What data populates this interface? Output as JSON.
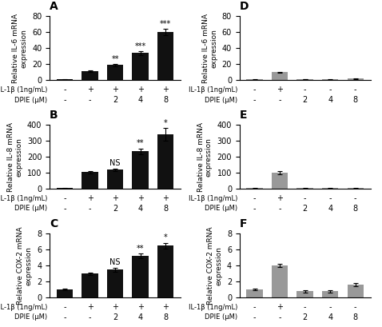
{
  "chart_data": [
    {
      "type": "bar",
      "title": "A",
      "ylabel": "Relative IL-6 mRNA\nexpression",
      "xlabel": [
        "IL-1β (1ng/mL)",
        "DPIE (μM)"
      ],
      "categories": [
        [
          "-",
          "-"
        ],
        [
          "+",
          "-"
        ],
        [
          "+",
          "2"
        ],
        [
          "+",
          "4"
        ],
        [
          "+",
          "8"
        ]
      ],
      "values": [
        1.0,
        11.0,
        19.0,
        34.0,
        60.0
      ],
      "errors": [
        0.3,
        1.0,
        1.5,
        2.5,
        4.0
      ],
      "annotations": [
        null,
        null,
        "**",
        "***",
        "***"
      ],
      "color": "#111111",
      "ylim": [
        0,
        80
      ],
      "yticks": [
        0,
        20,
        40,
        60,
        80
      ]
    },
    {
      "type": "bar",
      "title": "B",
      "ylabel": "Relative IL-8 mRNA\nexpression",
      "xlabel": [
        "IL-1β (1ng/mL)",
        "DPIE (μM)"
      ],
      "categories": [
        [
          "-",
          "-"
        ],
        [
          "+",
          "-"
        ],
        [
          "+",
          "2"
        ],
        [
          "+",
          "4"
        ],
        [
          "+",
          "8"
        ]
      ],
      "values": [
        5.0,
        105.0,
        120.0,
        235.0,
        340.0
      ],
      "errors": [
        2.0,
        6.0,
        9.0,
        18.0,
        40.0
      ],
      "annotations": [
        null,
        null,
        "NS",
        "**",
        "*"
      ],
      "color": "#111111",
      "ylim": [
        0,
        400
      ],
      "yticks": [
        0,
        100,
        200,
        300,
        400
      ]
    },
    {
      "type": "bar",
      "title": "C",
      "ylabel": "Relative COX-2 mRNA\nexpression",
      "xlabel": [
        "IL-1β (1ng/mL)",
        "DPIE (μM)"
      ],
      "categories": [
        [
          "-",
          "-"
        ],
        [
          "+",
          "-"
        ],
        [
          "+",
          "2"
        ],
        [
          "+",
          "4"
        ],
        [
          "+",
          "8"
        ]
      ],
      "values": [
        1.0,
        3.0,
        3.5,
        5.2,
        6.5
      ],
      "errors": [
        0.1,
        0.15,
        0.25,
        0.3,
        0.35
      ],
      "annotations": [
        null,
        null,
        "NS",
        "**",
        "*"
      ],
      "color": "#111111",
      "ylim": [
        0,
        8
      ],
      "yticks": [
        0,
        2,
        4,
        6,
        8
      ]
    },
    {
      "type": "bar",
      "title": "D",
      "ylabel": "Relative IL-6 mRNA\nexpression",
      "xlabel": [
        "IL-1β (1ng/mL)",
        "DPIE (μM)"
      ],
      "categories": [
        [
          "-",
          "-"
        ],
        [
          "+",
          "-"
        ],
        [
          "-",
          "2"
        ],
        [
          "-",
          "4"
        ],
        [
          "-",
          "8"
        ]
      ],
      "values": [
        1.0,
        10.0,
        1.5,
        1.0,
        2.0
      ],
      "errors": [
        0.2,
        0.8,
        0.3,
        0.2,
        0.3
      ],
      "annotations": [
        null,
        null,
        null,
        null,
        null
      ],
      "color": "#999999",
      "ylim": [
        0,
        80
      ],
      "yticks": [
        0,
        20,
        40,
        60,
        80
      ]
    },
    {
      "type": "bar",
      "title": "E",
      "ylabel": "Relative IL-8 mRNA\nexpression",
      "xlabel": [
        "IL-1β (1ng/mL)",
        "DPIE (μM)"
      ],
      "categories": [
        [
          "-",
          "-"
        ],
        [
          "+",
          "-"
        ],
        [
          "-",
          "2"
        ],
        [
          "-",
          "4"
        ],
        [
          "-",
          "8"
        ]
      ],
      "values": [
        5.0,
        100.0,
        5.0,
        5.0,
        5.0
      ],
      "errors": [
        1.5,
        10.0,
        1.5,
        1.5,
        1.5
      ],
      "annotations": [
        null,
        null,
        null,
        null,
        null
      ],
      "color": "#999999",
      "ylim": [
        0,
        400
      ],
      "yticks": [
        0,
        100,
        200,
        300,
        400
      ]
    },
    {
      "type": "bar",
      "title": "F",
      "ylabel": "Relative COX-2 mRNA\nexpression",
      "xlabel": [
        "IL-1β (1ng/mL)",
        "DPIE (μM)"
      ],
      "categories": [
        [
          "-",
          "-"
        ],
        [
          "+",
          "-"
        ],
        [
          "-",
          "2"
        ],
        [
          "-",
          "4"
        ],
        [
          "-",
          "8"
        ]
      ],
      "values": [
        1.0,
        4.0,
        0.8,
        0.8,
        1.6
      ],
      "errors": [
        0.1,
        0.2,
        0.15,
        0.15,
        0.2
      ],
      "annotations": [
        null,
        null,
        null,
        null,
        null
      ],
      "color": "#999999",
      "ylim": [
        0,
        8
      ],
      "yticks": [
        0,
        2,
        4,
        6,
        8
      ]
    }
  ]
}
